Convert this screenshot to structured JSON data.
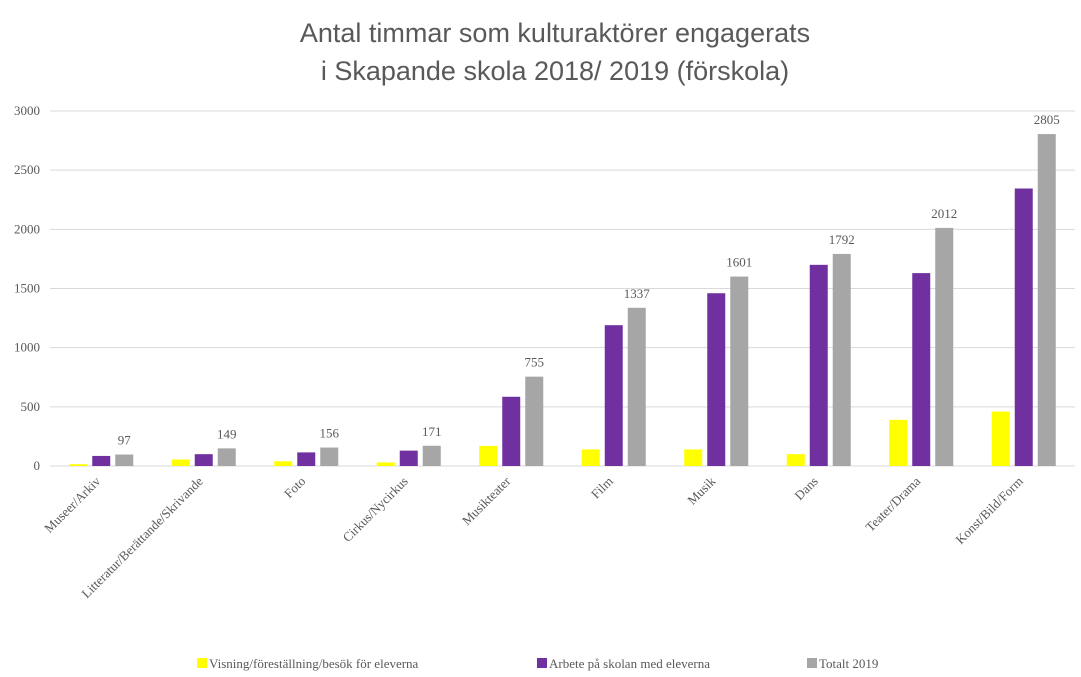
{
  "chart_data": {
    "type": "bar",
    "title": [
      "Antal timmar som kulturaktörer engagerats",
      "i Skapande skola 2018/ 2019 (förskola)"
    ],
    "categories": [
      "Museer/Arkiv",
      "Litteratur/Berättande/Skrivande",
      "Foto",
      "Cirkus/Nycirkus",
      "Musikteater",
      "Film",
      "Musik",
      "Dans",
      "Teater/Drama",
      "Konst/Bild/Form"
    ],
    "series": [
      {
        "name": "Visning/föreställning/besök för eleverna",
        "color": "#ffff00",
        "values": [
          15,
          55,
          40,
          30,
          170,
          140,
          140,
          100,
          390,
          460
        ]
      },
      {
        "name": "Arbete på skolan med eleverna",
        "color": "#7030a0",
        "values": [
          85,
          100,
          115,
          130,
          585,
          1190,
          1460,
          1700,
          1630,
          2345
        ]
      },
      {
        "name": "Totalt 2019",
        "color": "#a6a6a6",
        "values": [
          97,
          149,
          156,
          171,
          755,
          1337,
          1601,
          1792,
          2012,
          2805
        ],
        "show_values": true
      }
    ],
    "ylim": [
      0,
      3000
    ],
    "yticks": [
      0,
      500,
      1000,
      1500,
      2000,
      2500,
      3000
    ],
    "grid": true,
    "legend": "bottom"
  }
}
